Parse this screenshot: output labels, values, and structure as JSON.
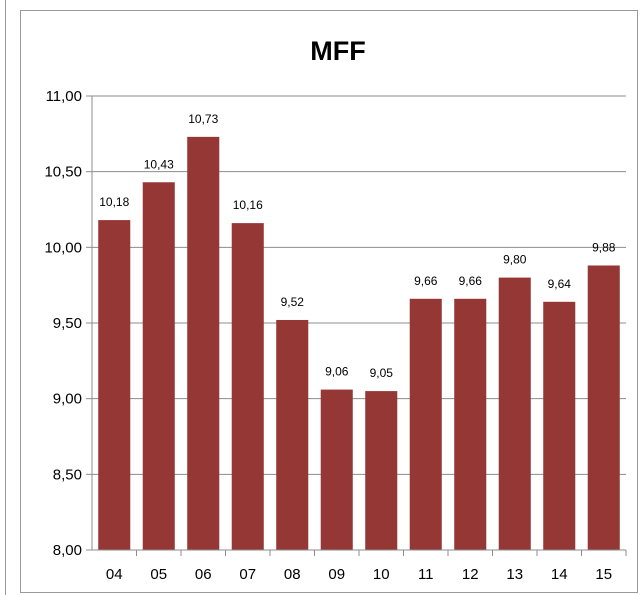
{
  "chart_data": {
    "type": "bar",
    "title": "MFF",
    "categories": [
      "04",
      "05",
      "06",
      "07",
      "08",
      "09",
      "10",
      "11",
      "12",
      "13",
      "14",
      "15"
    ],
    "values": [
      10.18,
      10.43,
      10.73,
      10.16,
      9.52,
      9.06,
      9.05,
      9.66,
      9.66,
      9.8,
      9.64,
      9.88
    ],
    "data_labels": [
      "10,18",
      "10,43",
      "10,73",
      "10,16",
      "9,52",
      "9,06",
      "9,05",
      "9,66",
      "9,66",
      "9,80",
      "9,64",
      "9,88"
    ],
    "ylim": [
      8.0,
      11.0
    ],
    "yticks": [
      8.0,
      8.5,
      9.0,
      9.5,
      10.0,
      10.5,
      11.0
    ],
    "ytick_labels": [
      "8,00",
      "8,50",
      "9,00",
      "9,50",
      "10,00",
      "10,50",
      "11,00"
    ],
    "grid": true,
    "legend": "none",
    "bar_color": "#953735",
    "grid_color": "#8c8c8c"
  }
}
